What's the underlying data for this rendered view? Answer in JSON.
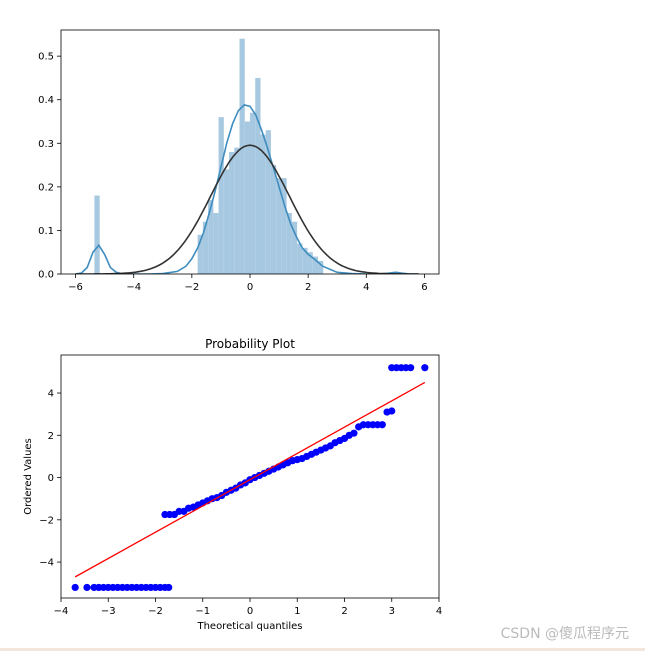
{
  "chart_data": [
    {
      "type": "histogram",
      "title": "",
      "xlabel": "",
      "ylabel": "",
      "xlim": [
        -6.5,
        6.5
      ],
      "ylim": [
        0,
        0.56
      ],
      "xticks": [
        -6,
        -4,
        -2,
        0,
        2,
        4,
        6
      ],
      "yticks": [
        0.0,
        0.1,
        0.2,
        0.3,
        0.4,
        0.5
      ],
      "colors": {
        "bars": "#a6c8e0",
        "kde": "#3f8dbf",
        "normal_fit": "#333333"
      },
      "bars": [
        {
          "x": -5.35,
          "width": 0.18,
          "y": 0.18
        },
        {
          "x": -1.8,
          "width": 0.18,
          "y": 0.09
        },
        {
          "x": -1.62,
          "width": 0.18,
          "y": 0.12
        },
        {
          "x": -1.44,
          "width": 0.18,
          "y": 0.17
        },
        {
          "x": -1.26,
          "width": 0.18,
          "y": 0.14
        },
        {
          "x": -1.08,
          "width": 0.18,
          "y": 0.36
        },
        {
          "x": -0.9,
          "width": 0.18,
          "y": 0.24
        },
        {
          "x": -0.72,
          "width": 0.18,
          "y": 0.28
        },
        {
          "x": -0.54,
          "width": 0.18,
          "y": 0.29
        },
        {
          "x": -0.36,
          "width": 0.18,
          "y": 0.54
        },
        {
          "x": -0.18,
          "width": 0.18,
          "y": 0.35
        },
        {
          "x": 0.0,
          "width": 0.18,
          "y": 0.37
        },
        {
          "x": 0.18,
          "width": 0.18,
          "y": 0.45
        },
        {
          "x": 0.36,
          "width": 0.18,
          "y": 0.32
        },
        {
          "x": 0.54,
          "width": 0.18,
          "y": 0.33
        },
        {
          "x": 0.72,
          "width": 0.18,
          "y": 0.25
        },
        {
          "x": 0.9,
          "width": 0.18,
          "y": 0.22
        },
        {
          "x": 1.08,
          "width": 0.18,
          "y": 0.22
        },
        {
          "x": 1.26,
          "width": 0.18,
          "y": 0.14
        },
        {
          "x": 1.44,
          "width": 0.18,
          "y": 0.12
        },
        {
          "x": 1.62,
          "width": 0.18,
          "y": 0.07
        },
        {
          "x": 1.8,
          "width": 0.18,
          "y": 0.06
        },
        {
          "x": 1.98,
          "width": 0.18,
          "y": 0.05
        },
        {
          "x": 2.16,
          "width": 0.18,
          "y": 0.04
        },
        {
          "x": 2.34,
          "width": 0.18,
          "y": 0.03
        },
        {
          "x": 4.95,
          "width": 0.18,
          "y": 0.005
        }
      ],
      "kde": {
        "x": [
          -6.0,
          -5.8,
          -5.6,
          -5.4,
          -5.2,
          -5.0,
          -4.8,
          -4.6,
          -4.4,
          -4.0,
          -3.5,
          -3.0,
          -2.5,
          -2.2,
          -2.0,
          -1.8,
          -1.6,
          -1.4,
          -1.2,
          -1.0,
          -0.8,
          -0.6,
          -0.4,
          -0.2,
          0.0,
          0.2,
          0.4,
          0.6,
          0.8,
          1.0,
          1.2,
          1.4,
          1.6,
          1.8,
          2.0,
          2.2,
          2.5,
          3.0,
          3.5,
          4.0,
          4.5,
          4.8,
          5.0,
          5.2,
          5.5,
          5.8
        ],
        "y": [
          0.0,
          0.002,
          0.015,
          0.05,
          0.066,
          0.045,
          0.015,
          0.004,
          0.001,
          0.0,
          0.0,
          0.001,
          0.006,
          0.018,
          0.035,
          0.06,
          0.095,
          0.14,
          0.19,
          0.245,
          0.3,
          0.345,
          0.375,
          0.388,
          0.385,
          0.365,
          0.33,
          0.29,
          0.245,
          0.2,
          0.155,
          0.115,
          0.085,
          0.06,
          0.045,
          0.035,
          0.018,
          0.004,
          0.001,
          0.0,
          0.0,
          0.002,
          0.004,
          0.002,
          0.0,
          0.0
        ]
      },
      "normal_fit": {
        "mean": 0.0,
        "std": 1.35,
        "xrange": [
          -6.0,
          5.8
        ]
      }
    },
    {
      "type": "scatter",
      "title": "Probability Plot",
      "xlabel": "Theoretical quantiles",
      "ylabel": "Ordered Values",
      "xlim": [
        -4.0,
        4.0
      ],
      "ylim": [
        -5.7,
        5.8
      ],
      "xticks": [
        -4,
        -3,
        -2,
        -1,
        0,
        1,
        2,
        3,
        4
      ],
      "yticks": [
        -4,
        -2,
        0,
        2,
        4
      ],
      "colors": {
        "points": "#0000ff",
        "fit_line": "#ff0000"
      },
      "fit_line": {
        "x": [
          -3.7,
          3.7
        ],
        "y": [
          -4.7,
          4.5
        ]
      },
      "points": [
        [
          -3.7,
          -5.2
        ],
        [
          -3.45,
          -5.2
        ],
        [
          -3.3,
          -5.2
        ],
        [
          -3.2,
          -5.2
        ],
        [
          -3.1,
          -5.2
        ],
        [
          -3.0,
          -5.2
        ],
        [
          -2.9,
          -5.2
        ],
        [
          -2.8,
          -5.2
        ],
        [
          -2.7,
          -5.2
        ],
        [
          -2.6,
          -5.2
        ],
        [
          -2.5,
          -5.2
        ],
        [
          -2.4,
          -5.2
        ],
        [
          -2.3,
          -5.2
        ],
        [
          -2.2,
          -5.2
        ],
        [
          -2.1,
          -5.2
        ],
        [
          -2.0,
          -5.2
        ],
        [
          -1.9,
          -5.2
        ],
        [
          -1.8,
          -5.2
        ],
        [
          -1.72,
          -5.2
        ],
        [
          -1.8,
          -1.75
        ],
        [
          -1.7,
          -1.75
        ],
        [
          -1.6,
          -1.75
        ],
        [
          -1.5,
          -1.6
        ],
        [
          -1.4,
          -1.6
        ],
        [
          -1.3,
          -1.45
        ],
        [
          -1.2,
          -1.4
        ],
        [
          -1.1,
          -1.3
        ],
        [
          -1.0,
          -1.2
        ],
        [
          -0.9,
          -1.1
        ],
        [
          -0.8,
          -1.0
        ],
        [
          -0.7,
          -0.95
        ],
        [
          -0.6,
          -0.85
        ],
        [
          -0.5,
          -0.7
        ],
        [
          -0.4,
          -0.6
        ],
        [
          -0.3,
          -0.5
        ],
        [
          -0.2,
          -0.35
        ],
        [
          -0.1,
          -0.25
        ],
        [
          0.0,
          -0.1
        ],
        [
          0.1,
          0.0
        ],
        [
          0.2,
          0.1
        ],
        [
          0.3,
          0.2
        ],
        [
          0.4,
          0.3
        ],
        [
          0.5,
          0.4
        ],
        [
          0.6,
          0.5
        ],
        [
          0.7,
          0.6
        ],
        [
          0.8,
          0.7
        ],
        [
          0.9,
          0.8
        ],
        [
          1.0,
          0.85
        ],
        [
          1.1,
          0.9
        ],
        [
          1.2,
          1.0
        ],
        [
          1.3,
          1.1
        ],
        [
          1.4,
          1.2
        ],
        [
          1.5,
          1.3
        ],
        [
          1.6,
          1.4
        ],
        [
          1.7,
          1.5
        ],
        [
          1.8,
          1.65
        ],
        [
          1.9,
          1.75
        ],
        [
          2.0,
          1.85
        ],
        [
          2.1,
          2.0
        ],
        [
          2.2,
          2.1
        ],
        [
          2.3,
          2.4
        ],
        [
          2.4,
          2.5
        ],
        [
          2.5,
          2.5
        ],
        [
          2.6,
          2.5
        ],
        [
          2.7,
          2.5
        ],
        [
          2.8,
          2.5
        ],
        [
          2.9,
          3.1
        ],
        [
          3.0,
          3.15
        ],
        [
          3.0,
          5.2
        ],
        [
          3.1,
          5.2
        ],
        [
          3.2,
          5.2
        ],
        [
          3.3,
          5.2
        ],
        [
          3.4,
          5.2
        ],
        [
          3.7,
          5.2
        ]
      ]
    }
  ],
  "watermark": "CSDN @傻瓜程序元"
}
